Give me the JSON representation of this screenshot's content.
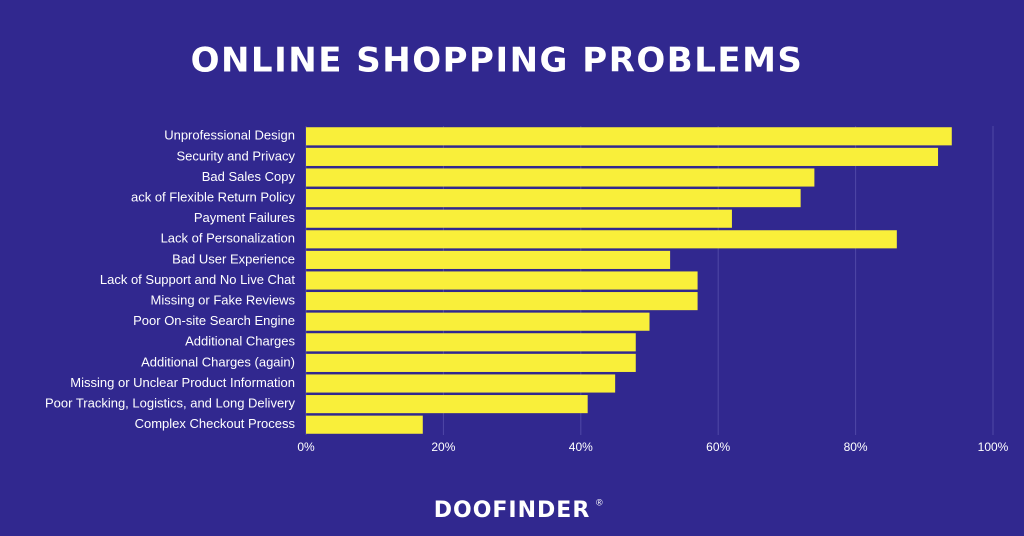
{
  "chart_data": {
    "type": "bar",
    "orientation": "horizontal",
    "title": "ONLINE SHOPPING PROBLEMS",
    "categories": [
      "Unprofessional Design",
      "Security and Privacy",
      "Bad Sales Copy",
      "ack of Flexible Return Policy",
      "Payment Failures",
      "Lack of Personalization",
      "Bad User Experience",
      "Lack of Support and No Live Chat",
      "Missing or Fake Reviews",
      "Poor On-site Search Engine",
      "Additional Charges",
      "Additional Charges (again)",
      "Missing or Unclear Product Information",
      "Poor Tracking, Logistics, and Long Delivery",
      "Complex Checkout Process"
    ],
    "values": [
      94,
      92,
      74,
      72,
      62,
      86,
      53,
      57,
      57,
      50,
      48,
      48,
      45,
      41,
      17
    ],
    "color": "#f9ef3a",
    "xlim": [
      0,
      100
    ],
    "xticks": [
      {
        "value": 0,
        "label": "0%"
      },
      {
        "value": 20,
        "label": "20%"
      },
      {
        "value": 40,
        "label": "40%"
      },
      {
        "value": 60,
        "label": "60%"
      },
      {
        "value": 80,
        "label": "80%"
      },
      {
        "value": 100,
        "label": "100%"
      }
    ],
    "grid": true
  },
  "brand": "DOOFINDER",
  "brand_mark": "®"
}
